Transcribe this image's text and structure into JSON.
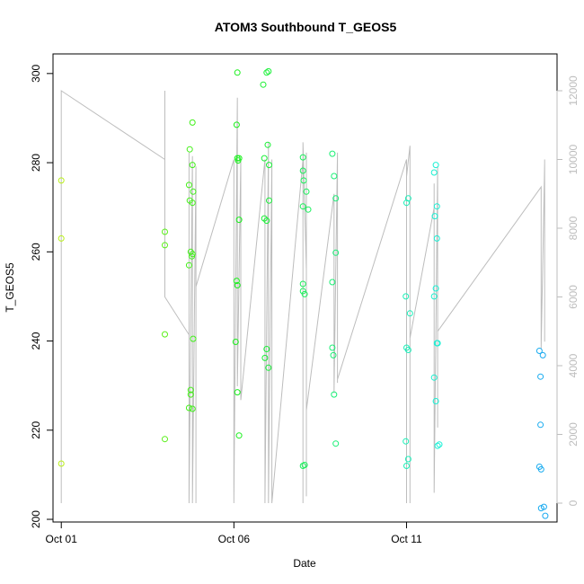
{
  "chart_data": {
    "type": "scatter",
    "title": "ATOM3 Southbound T_GEOS5",
    "xlabel": "Date",
    "ylabel": "T_GEOS5",
    "x_axis": {
      "ticks": [
        {
          "label": "Oct 01",
          "day": 1
        },
        {
          "label": "Oct 06",
          "day": 6
        },
        {
          "label": "Oct 11",
          "day": 11
        }
      ],
      "range_days": [
        0.76,
        15.36
      ]
    },
    "y_axis": {
      "ticks": [
        200,
        220,
        240,
        260,
        280,
        300
      ],
      "range": [
        199.4,
        304.4
      ]
    },
    "y2_axis": {
      "ticks": [
        0,
        2000,
        4000,
        6000,
        8000,
        10000,
        12000
      ],
      "color": "#bdbdbd"
    },
    "grid": false,
    "legend": "none",
    "altitude_trace": {
      "color": "#bdbdbd",
      "points": [
        [
          1.0,
          0
        ],
        [
          1.0,
          12000
        ],
        [
          4.0,
          10000
        ],
        [
          4.0,
          6200
        ],
        [
          4.0,
          12000
        ],
        [
          4.0,
          6000
        ],
        [
          4.7,
          4900
        ],
        [
          4.7,
          10200
        ],
        [
          4.7,
          0
        ],
        [
          4.8,
          10100
        ],
        [
          4.8,
          0
        ],
        [
          4.9,
          9800
        ],
        [
          4.9,
          0
        ],
        [
          4.9,
          4800
        ],
        [
          4.9,
          6300
        ],
        [
          6.0,
          10000
        ],
        [
          6.0,
          0
        ],
        [
          6.1,
          11800
        ],
        [
          6.1,
          5000
        ],
        [
          6.1,
          10200
        ],
        [
          6.1,
          3400
        ],
        [
          6.2,
          10000
        ],
        [
          6.2,
          3000
        ],
        [
          6.9,
          10000
        ],
        [
          6.9,
          0
        ],
        [
          7.0,
          10500
        ],
        [
          7.0,
          0
        ],
        [
          7.1,
          10000
        ],
        [
          7.1,
          4000
        ],
        [
          7.1,
          0
        ],
        [
          8.0,
          10000
        ],
        [
          8.0,
          0
        ],
        [
          8.0,
          10500
        ],
        [
          8.1,
          6800
        ],
        [
          8.1,
          200
        ],
        [
          8.1,
          10200
        ],
        [
          8.1,
          2700
        ],
        [
          8.9,
          9000
        ],
        [
          8.9,
          3200
        ],
        [
          9.0,
          10200
        ],
        [
          9.0,
          3500
        ],
        [
          9.0,
          9000
        ],
        [
          9.0,
          3600
        ],
        [
          11.0,
          10000
        ],
        [
          11.0,
          0
        ],
        [
          11.0,
          9500
        ],
        [
          11.1,
          10400
        ],
        [
          11.1,
          0
        ],
        [
          11.1,
          9000
        ],
        [
          11.1,
          5000
        ],
        [
          11.1,
          4800
        ],
        [
          11.8,
          8600
        ],
        [
          11.8,
          300
        ],
        [
          11.8,
          9300
        ],
        [
          11.8,
          300
        ],
        [
          11.9,
          9800
        ],
        [
          11.9,
          2800
        ],
        [
          11.9,
          9400
        ],
        [
          11.9,
          2200
        ],
        [
          11.9,
          9400
        ],
        [
          11.9,
          5000
        ],
        [
          14.9,
          9200
        ],
        [
          14.9,
          4500
        ],
        [
          15.0,
          9900
        ],
        [
          15.0,
          4700
        ],
        [
          15.0,
          10000
        ]
      ]
    },
    "series": [
      {
        "points": [
          [
            1.0,
            276.0
          ],
          [
            1.0,
            263.0
          ],
          [
            1.0,
            212.5
          ],
          [
            4.0,
            264.5
          ],
          [
            4.0,
            261.5
          ],
          [
            4.0,
            241.5
          ],
          [
            4.0,
            218.0
          ],
          [
            4.72,
            283.0
          ],
          [
            4.7,
            275.0
          ],
          [
            4.72,
            271.5
          ],
          [
            4.7,
            257.0
          ],
          [
            4.75,
            260.0
          ],
          [
            4.75,
            229.0
          ],
          [
            4.7,
            225.0
          ],
          [
            4.75,
            228.0
          ],
          [
            4.8,
            289.0
          ],
          [
            4.8,
            279.5
          ],
          [
            4.82,
            273.5
          ],
          [
            4.8,
            271.0
          ],
          [
            4.78,
            259.0
          ],
          [
            4.8,
            259.5
          ],
          [
            4.82,
            240.5
          ],
          [
            4.8,
            224.8
          ],
          [
            6.1,
            300.2
          ],
          [
            6.08,
            288.5
          ],
          [
            6.1,
            281.0
          ],
          [
            6.12,
            280.5
          ],
          [
            6.15,
            281.0
          ],
          [
            6.15,
            267.2
          ],
          [
            6.08,
            253.5
          ],
          [
            6.1,
            252.5
          ],
          [
            6.05,
            239.8
          ],
          [
            6.1,
            228.5
          ],
          [
            6.15,
            218.8
          ],
          [
            6.85,
            297.5
          ],
          [
            6.95,
            300.2
          ],
          [
            7.0,
            300.5
          ],
          [
            6.88,
            281.0
          ],
          [
            6.98,
            284.0
          ],
          [
            7.02,
            279.5
          ],
          [
            7.02,
            271.5
          ],
          [
            6.88,
            267.5
          ],
          [
            6.95,
            267.0
          ],
          [
            6.9,
            236.2
          ],
          [
            6.95,
            238.2
          ],
          [
            7.0,
            234.0
          ],
          [
            8.0,
            281.2
          ],
          [
            8.0,
            278.2
          ],
          [
            8.02,
            276.0
          ],
          [
            8.1,
            273.5
          ],
          [
            8.0,
            270.2
          ],
          [
            8.15,
            269.5
          ],
          [
            8.0,
            252.8
          ],
          [
            8.0,
            251.2
          ],
          [
            8.05,
            250.5
          ],
          [
            8.0,
            212.0
          ],
          [
            8.05,
            212.2
          ],
          [
            8.85,
            282.0
          ],
          [
            8.9,
            277.0
          ],
          [
            8.95,
            272.0
          ],
          [
            8.95,
            259.8
          ],
          [
            8.85,
            253.2
          ],
          [
            8.85,
            238.5
          ],
          [
            8.88,
            236.8
          ],
          [
            8.9,
            228.0
          ],
          [
            8.95,
            217.0
          ],
          [
            11.0,
            271.0
          ],
          [
            11.05,
            272.0
          ],
          [
            10.98,
            250.0
          ],
          [
            11.1,
            246.2
          ],
          [
            11.0,
            238.5
          ],
          [
            11.05,
            238.0
          ],
          [
            10.98,
            217.5
          ],
          [
            11.05,
            213.5
          ],
          [
            11.0,
            212.0
          ],
          [
            11.8,
            277.8
          ],
          [
            11.85,
            279.5
          ],
          [
            11.88,
            270.2
          ],
          [
            11.82,
            268.0
          ],
          [
            11.88,
            263.0
          ],
          [
            11.85,
            251.8
          ],
          [
            11.8,
            250.0
          ],
          [
            11.88,
            239.5
          ],
          [
            11.9,
            239.5
          ],
          [
            11.8,
            231.8
          ],
          [
            11.85,
            226.5
          ],
          [
            11.9,
            216.5
          ],
          [
            11.95,
            216.8
          ],
          [
            14.85,
            237.8
          ],
          [
            14.95,
            236.8
          ],
          [
            14.88,
            232.0
          ],
          [
            14.88,
            221.2
          ],
          [
            14.85,
            211.8
          ],
          [
            14.9,
            211.2
          ],
          [
            14.9,
            202.5
          ],
          [
            14.98,
            202.8
          ],
          [
            15.02,
            200.8
          ]
        ]
      }
    ]
  }
}
